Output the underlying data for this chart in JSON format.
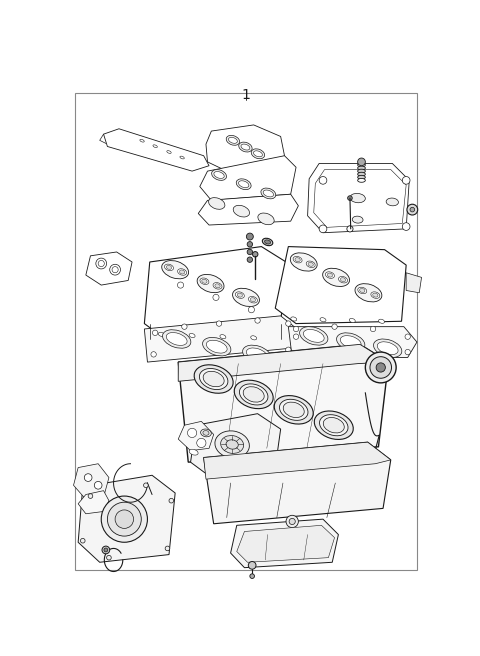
{
  "background_color": "#ffffff",
  "border_color": "#999999",
  "line_color": "#1a1a1a",
  "title": "1",
  "title_fontsize": 10,
  "fig_width": 4.8,
  "fig_height": 6.56,
  "dpi": 100
}
